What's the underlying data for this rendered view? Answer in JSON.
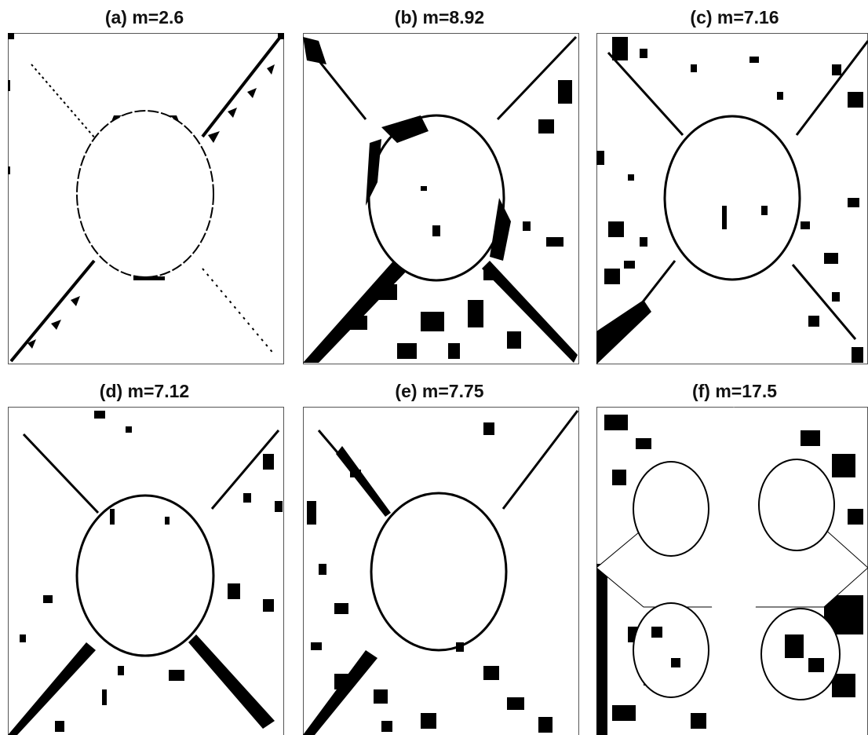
{
  "figure": {
    "panels": [
      {
        "id": "a",
        "label": "(a) m=2.6"
      },
      {
        "id": "b",
        "label": "(b) m=8.92"
      },
      {
        "id": "c",
        "label": "(c) m=7.16"
      },
      {
        "id": "d",
        "label": "(d) m=7.12"
      },
      {
        "id": "e",
        "label": "(e) m=7.75"
      },
      {
        "id": "f",
        "label": "(f) m=17.5"
      }
    ],
    "colors": {
      "foreground": "#000000",
      "background": "#ffffff",
      "frame": "#555555"
    }
  }
}
